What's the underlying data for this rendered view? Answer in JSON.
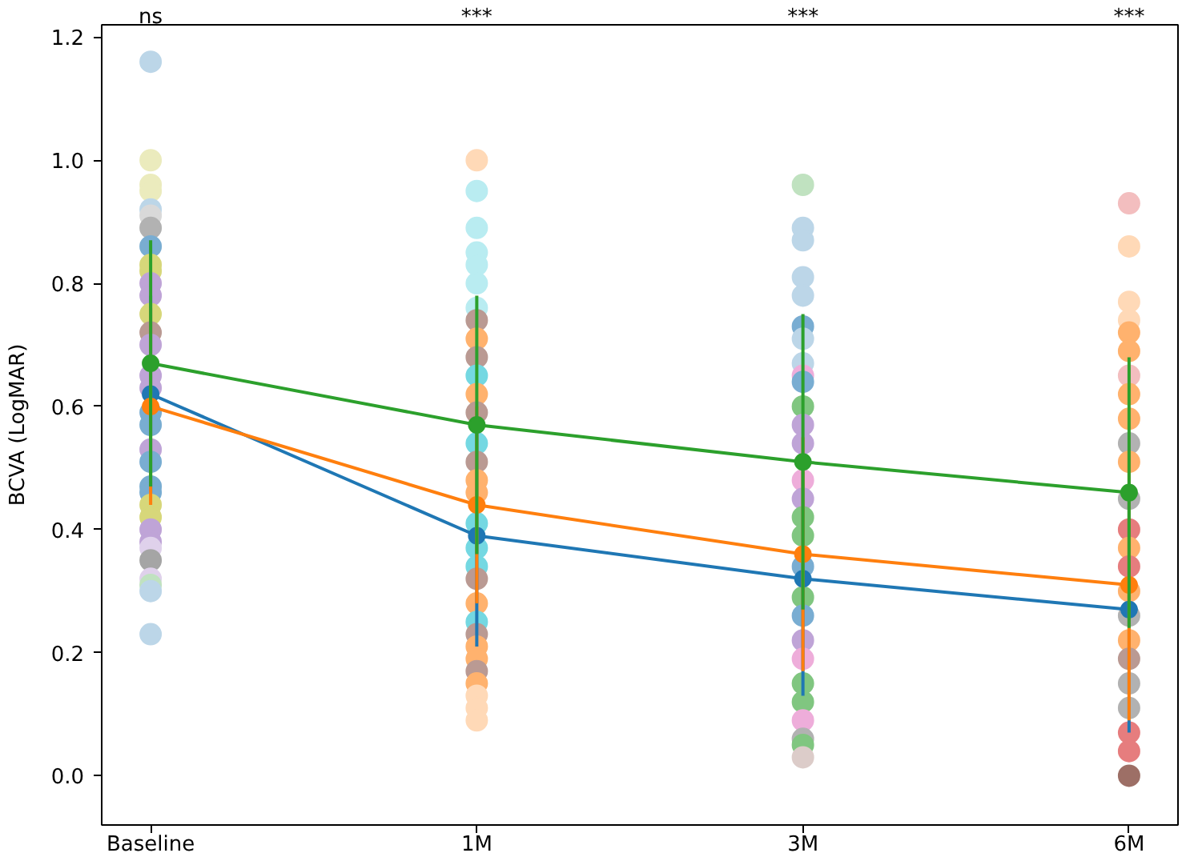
{
  "chart_data": {
    "type": "line",
    "ylabel": "BCVA (LogMAR)",
    "categories": [
      "Baseline",
      "1M",
      "3M",
      "6M"
    ],
    "ylim": [
      -0.08,
      1.22
    ],
    "yticks": [
      {
        "value": 0,
        "label": "0.0"
      },
      0.2,
      0.4,
      0.6,
      0.8,
      {
        "value": 1,
        "label": "1.0"
      },
      1.2
    ],
    "grid": false,
    "marker": "circle",
    "line_style": "solid",
    "annotations": [
      "ns",
      "***",
      "***",
      "***"
    ],
    "series": [
      {
        "type": "scatter",
        "x": [
          "Baseline",
          "Baseline",
          "Baseline",
          "Baseline",
          "Baseline",
          "Baseline",
          "Baseline",
          "Baseline",
          "Baseline",
          "Baseline",
          "Baseline",
          "Baseline",
          "Baseline",
          "Baseline",
          "Baseline",
          "Baseline",
          "Baseline",
          "Baseline",
          "Baseline",
          "Baseline",
          "Baseline",
          "Baseline",
          "Baseline",
          "Baseline",
          "Baseline",
          "Baseline",
          "Baseline",
          "Baseline",
          "Baseline",
          "Baseline",
          "Baseline",
          "Baseline",
          "Baseline",
          "1M",
          "1M",
          "1M",
          "1M",
          "1M",
          "1M",
          "1M",
          "1M",
          "1M",
          "1M",
          "1M",
          "1M",
          "1M",
          "1M",
          "1M",
          "1M",
          "1M",
          "1M",
          "1M",
          "1M",
          "1M",
          "1M",
          "1M",
          "1M",
          "1M",
          "1M",
          "1M",
          "1M",
          "1M",
          "1M",
          "1M",
          "3M",
          "3M",
          "3M",
          "3M",
          "3M",
          "3M",
          "3M",
          "3M",
          "3M",
          "3M",
          "3M",
          "3M",
          "3M",
          "3M",
          "3M",
          "3M",
          "3M",
          "3M",
          "3M",
          "3M",
          "3M",
          "3M",
          "3M",
          "3M",
          "3M",
          "3M",
          "3M",
          "3M",
          "6M",
          "6M",
          "6M",
          "6M",
          "6M",
          "6M",
          "6M",
          "6M",
          "6M",
          "6M",
          "6M",
          "6M",
          "6M",
          "6M",
          "6M",
          "6M",
          "6M",
          "6M",
          "6M",
          "6M",
          "6M",
          "6M",
          "6M",
          "6M"
        ],
        "values": [
          1.16,
          1.0,
          0.96,
          0.95,
          0.92,
          0.91,
          0.89,
          0.86,
          0.83,
          0.82,
          0.8,
          0.78,
          0.75,
          0.72,
          0.7,
          0.65,
          0.63,
          0.59,
          0.57,
          0.53,
          0.51,
          0.47,
          0.46,
          0.44,
          0.42,
          0.4,
          0.38,
          0.37,
          0.35,
          0.32,
          0.31,
          0.3,
          0.23,
          1.0,
          0.95,
          0.89,
          0.85,
          0.83,
          0.8,
          0.76,
          0.74,
          0.71,
          0.68,
          0.65,
          0.62,
          0.59,
          0.54,
          0.51,
          0.48,
          0.46,
          0.41,
          0.37,
          0.34,
          0.32,
          0.28,
          0.25,
          0.23,
          0.21,
          0.19,
          0.17,
          0.15,
          0.13,
          0.11,
          0.09,
          0.96,
          0.89,
          0.87,
          0.81,
          0.78,
          0.73,
          0.71,
          0.67,
          0.65,
          0.64,
          0.6,
          0.57,
          0.54,
          0.48,
          0.45,
          0.42,
          0.39,
          0.34,
          0.29,
          0.26,
          0.22,
          0.19,
          0.15,
          0.12,
          0.09,
          0.06,
          0.05,
          0.03,
          0.93,
          0.86,
          0.77,
          0.74,
          0.72,
          0.69,
          0.65,
          0.62,
          0.58,
          0.54,
          0.51,
          0.45,
          0.4,
          0.37,
          0.34,
          0.3,
          0.26,
          0.22,
          0.19,
          0.15,
          0.11,
          0.07,
          0.04,
          0.0
        ],
        "colors": [
          "#bcd6e8",
          "#ebebbd",
          "#ebebbd",
          "#ebebbd",
          "#bcd6e8",
          "#d9d9d9",
          "#b2b2b2",
          "#79add2",
          "#d7d77a",
          "#d7d77a",
          "#bfa4d7",
          "#bfa4d7",
          "#d7d77a",
          "#ba9a93",
          "#bfa4d7",
          "#bfa4d7",
          "#bfa4d7",
          "#79add2",
          "#79add2",
          "#bfa4d7",
          "#79add2",
          "#79add2",
          "#79add2",
          "#d7d77a",
          "#d7d77a",
          "#bfa4d7",
          "#bfa4d7",
          "#dfd1eb",
          "#a5a5a5",
          "#dfd1eb",
          "#c0e2c0",
          "#bcd6e8",
          "#bcd6e8",
          "#ffd9b7",
          "#b9ecf1",
          "#b9ecf1",
          "#b9ecf1",
          "#b9ecf1",
          "#b9ecf1",
          "#b9ecf1",
          "#ba9a93",
          "#ffb26e",
          "#ba9a93",
          "#74d8e2",
          "#ffb26e",
          "#ba9a93",
          "#74d8e2",
          "#ba9a93",
          "#ffb26e",
          "#ffb26e",
          "#74d8e2",
          "#74d8e2",
          "#74d8e2",
          "#ba9a93",
          "#ffb26e",
          "#74d8e2",
          "#ba9a93",
          "#ffb26e",
          "#ffb26e",
          "#ba9a93",
          "#ffb26e",
          "#ffd9b7",
          "#ffd9b7",
          "#ffd9b7",
          "#c0e2c0",
          "#bcd6e8",
          "#bcd6e8",
          "#bcd6e8",
          "#bcd6e8",
          "#79add2",
          "#bcd6e8",
          "#bcd6e8",
          "#eeadda",
          "#79add2",
          "#80c680",
          "#bfa4d7",
          "#bfa4d7",
          "#eeadda",
          "#bfa4d7",
          "#80c680",
          "#80c680",
          "#79add2",
          "#80c680",
          "#79add2",
          "#bfa4d7",
          "#eeadda",
          "#80c680",
          "#80c680",
          "#eeadda",
          "#b2b2b2",
          "#80c680",
          "#dcccc9",
          "#f3bebf",
          "#ffd9b7",
          "#ffd9b7",
          "#ffd9b7",
          "#ffb26e",
          "#ffb26e",
          "#f3bebf",
          "#ffb26e",
          "#ffb26e",
          "#b2b2b2",
          "#ffb26e",
          "#b2b2b2",
          "#e67d7e",
          "#ffb26e",
          "#e67d7e",
          "#ffb26e",
          "#b2b2b2",
          "#ffb26e",
          "#ba9a93",
          "#b2b2b2",
          "#b2b2b2",
          "#e67d7e",
          "#e67d7e",
          "#9d6f66"
        ]
      },
      {
        "color": "#1f77b4",
        "values": [
          0.62,
          0.39,
          0.32,
          0.27
        ],
        "errors": [
          0.16,
          0.18,
          0.19,
          0.2
        ]
      },
      {
        "color": "#ff7f0e",
        "values": [
          0.6,
          0.44,
          0.36,
          0.31
        ],
        "errors": [
          0.16,
          0.16,
          0.19,
          0.22
        ]
      },
      {
        "color": "#2ca02c",
        "values": [
          0.67,
          0.57,
          0.51,
          0.46
        ],
        "errors": [
          0.2,
          0.21,
          0.24,
          0.22
        ]
      }
    ]
  }
}
